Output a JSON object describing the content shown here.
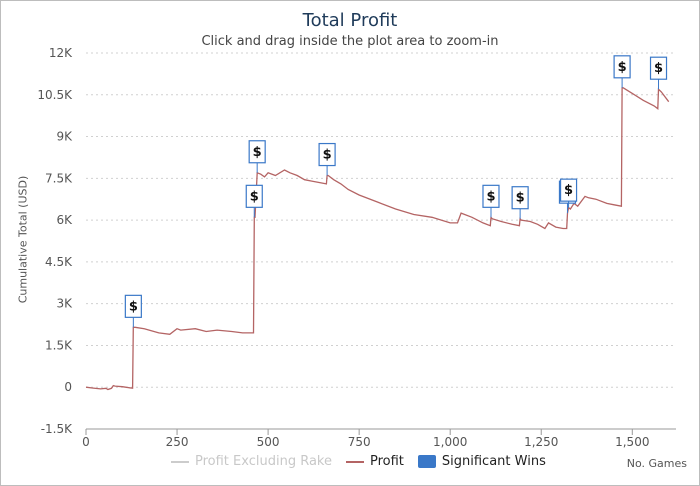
{
  "chart_data": {
    "type": "line",
    "title": "Total Profit",
    "subtitle": "Click and drag inside the plot area to zoom-in",
    "xlabel": "No. Games",
    "ylabel": "Cumulative Total (USD)",
    "xlim": [
      0,
      1620
    ],
    "ylim": [
      -1500,
      12000
    ],
    "x_ticks": [
      0,
      250,
      500,
      750,
      1000,
      1250,
      1500
    ],
    "x_tick_labels": [
      "0",
      "250",
      "500",
      "750",
      "1,000",
      "1,250",
      "1,500"
    ],
    "y_ticks": [
      -1500,
      0,
      1500,
      3000,
      4500,
      6000,
      7500,
      9000,
      10500,
      12000
    ],
    "y_tick_labels": [
      "-1.5K",
      "0",
      "1.5K",
      "3K",
      "4.5K",
      "6K",
      "7.5K",
      "9K",
      "10.5K",
      "12K"
    ],
    "grid": "horizontal dotted",
    "legend_position": "bottom",
    "series": [
      {
        "name": "Profit Excluding Rake",
        "color": "#cccccc",
        "hidden": true,
        "x": [],
        "y": []
      },
      {
        "name": "Profit",
        "color": "#b46464",
        "x": [
          0,
          20,
          40,
          55,
          60,
          70,
          75,
          80,
          100,
          120,
          128,
          130,
          135,
          160,
          200,
          230,
          250,
          260,
          300,
          330,
          360,
          400,
          430,
          460,
          462,
          464,
          470,
          480,
          490,
          500,
          520,
          545,
          560,
          580,
          600,
          620,
          640,
          660,
          662,
          665,
          680,
          700,
          720,
          750,
          800,
          850,
          900,
          950,
          1000,
          1020,
          1030,
          1060,
          1090,
          1110,
          1112,
          1115,
          1140,
          1170,
          1190,
          1192,
          1195,
          1220,
          1240,
          1260,
          1270,
          1290,
          1310,
          1320,
          1322,
          1325,
          1330,
          1335,
          1340,
          1350,
          1370,
          1380,
          1400,
          1430,
          1450,
          1470,
          1472,
          1475,
          1500,
          1530,
          1560,
          1570,
          1572,
          1580,
          1600
        ],
        "y": [
          0,
          -30,
          -60,
          -40,
          -80,
          -40,
          60,
          40,
          20,
          -20,
          -30,
          2150,
          2150,
          2100,
          1950,
          1900,
          2100,
          2050,
          2100,
          2000,
          2050,
          2000,
          1950,
          1950,
          6100,
          6100,
          7700,
          7650,
          7550,
          7700,
          7600,
          7800,
          7700,
          7600,
          7450,
          7400,
          7350,
          7300,
          7600,
          7600,
          7450,
          7300,
          7100,
          6900,
          6650,
          6400,
          6200,
          6100,
          5900,
          5900,
          6250,
          6100,
          5900,
          5800,
          6100,
          6050,
          5950,
          5850,
          5800,
          6050,
          6000,
          5950,
          5850,
          5700,
          5900,
          5750,
          5700,
          5700,
          6250,
          6450,
          6400,
          6500,
          6600,
          6500,
          6850,
          6800,
          6750,
          6600,
          6550,
          6500,
          10750,
          10750,
          10550,
          10300,
          10100,
          10000,
          10700,
          10600,
          10250
        ]
      }
    ],
    "flags": {
      "name": "Significant Wins",
      "color": "#3a78c8",
      "label": "$",
      "points": [
        {
          "x": 130,
          "y": 2150
        },
        {
          "x": 462,
          "y": 6100
        },
        {
          "x": 470,
          "y": 7700
        },
        {
          "x": 662,
          "y": 7600
        },
        {
          "x": 1112,
          "y": 6100
        },
        {
          "x": 1192,
          "y": 6050
        },
        {
          "x": 1322,
          "y": 6250
        },
        {
          "x": 1325,
          "y": 6450
        },
        {
          "x": 1472,
          "y": 10750
        },
        {
          "x": 1572,
          "y": 10700
        }
      ]
    }
  }
}
